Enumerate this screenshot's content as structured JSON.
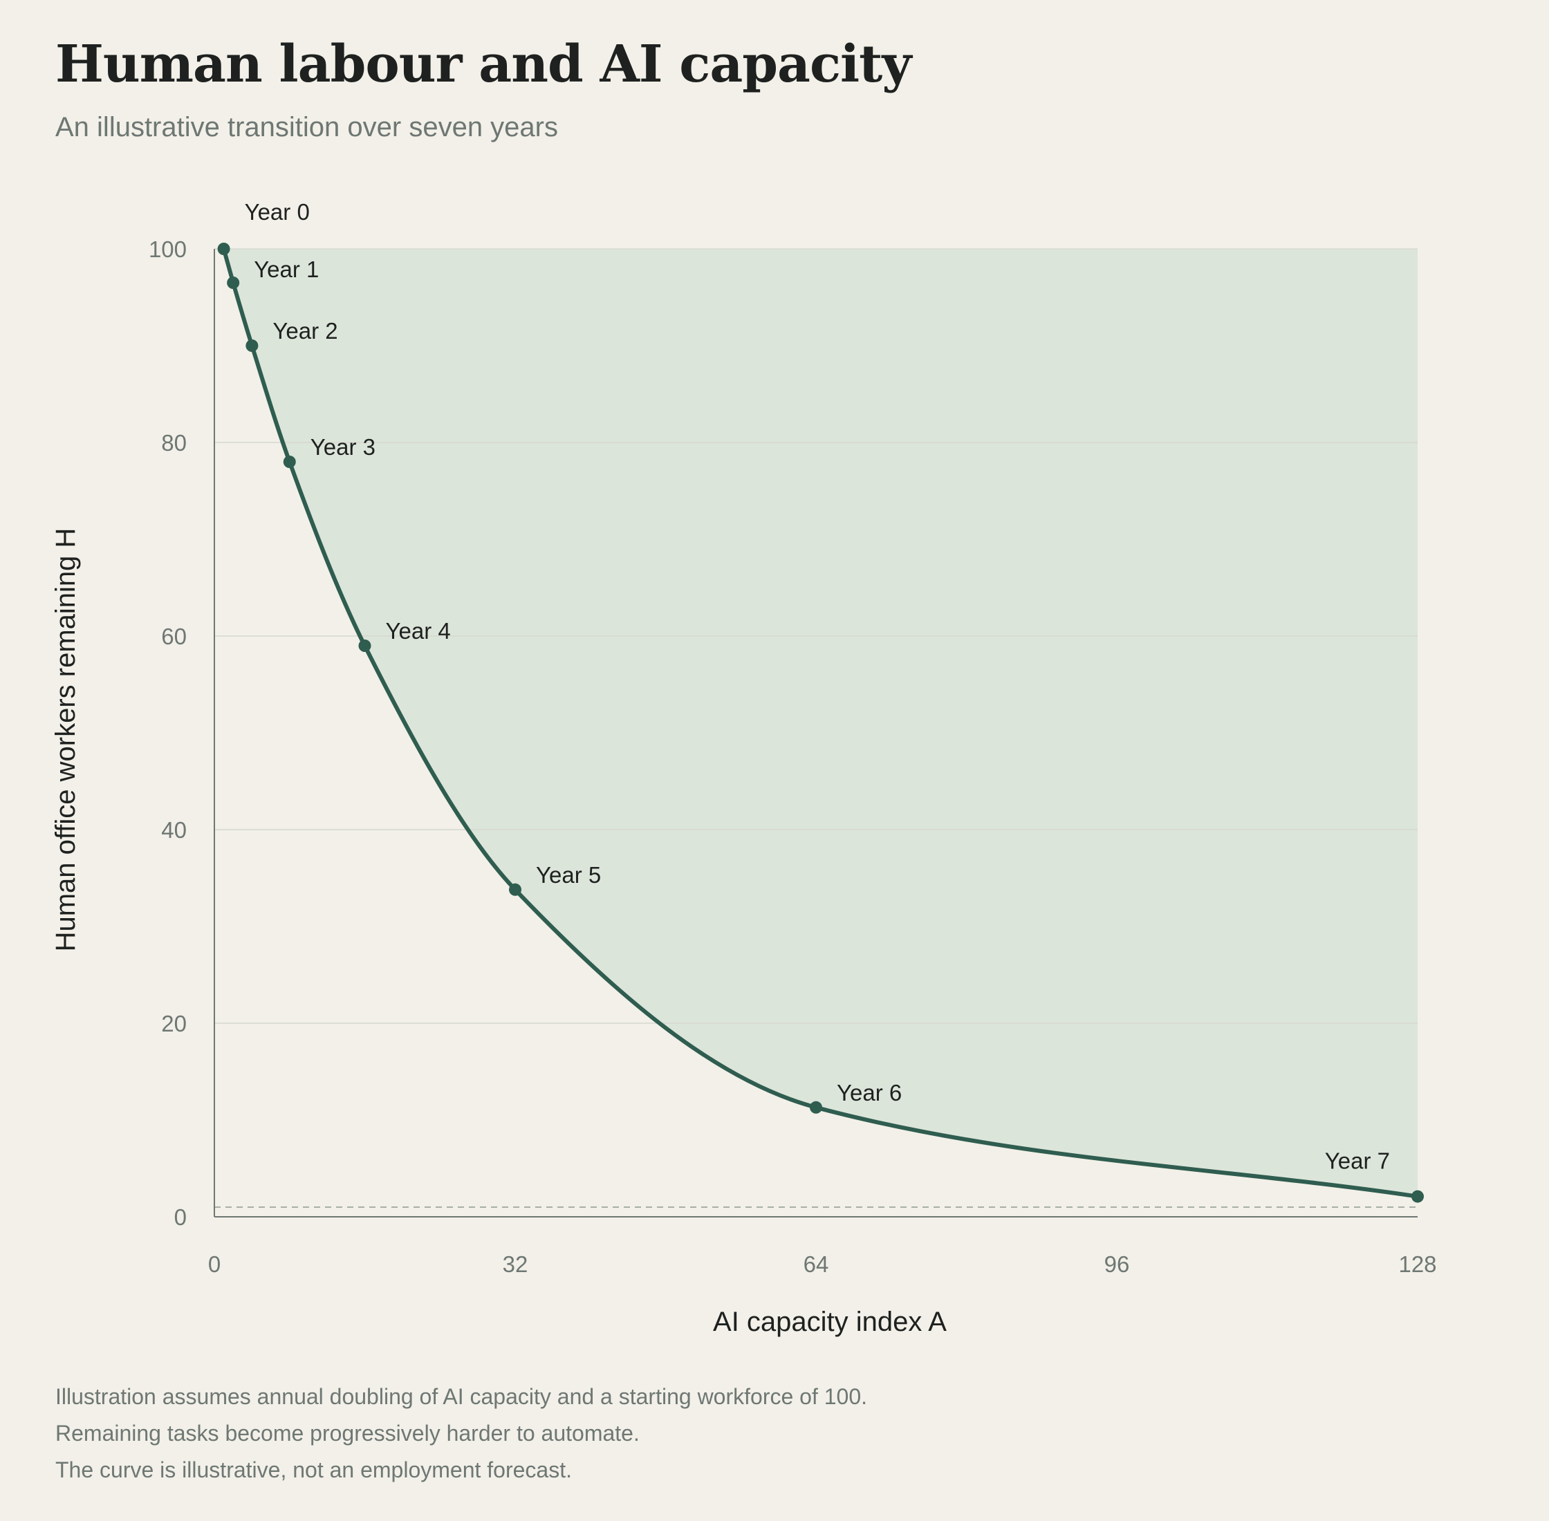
{
  "title": "Human labour and AI capacity",
  "subtitle": "An illustrative transition over seven years",
  "notes": [
    "Illustration assumes annual doubling of AI capacity and a starting workforce of 100.",
    "Remaining tasks become progressively harder to automate.",
    "The curve is illustrative, not an employment forecast."
  ],
  "colors": {
    "background": "#f2f0e8",
    "line": "#2f5d50",
    "fill": "#dce5da",
    "grid": "#d6d8d0",
    "axis": "#6e7773",
    "text": "#1e211f"
  },
  "chart_data": {
    "type": "line",
    "xlabel": "AI capacity index A",
    "ylabel": "Human office workers remaining H",
    "xlim": [
      0,
      128
    ],
    "ylim": [
      0,
      100
    ],
    "xticks": [
      0,
      32,
      64,
      96,
      128
    ],
    "yticks": [
      0,
      20,
      40,
      60,
      80,
      100
    ],
    "grid": true,
    "area_under": false,
    "area_above_filled": true,
    "reference_line": {
      "y": 1,
      "style": "dashed"
    },
    "series": [
      {
        "points": [
          {
            "label": "Year 0",
            "x": 1,
            "y": 100
          },
          {
            "label": "Year 1",
            "x": 2,
            "y": 96.5
          },
          {
            "label": "Year 2",
            "x": 4,
            "y": 90
          },
          {
            "label": "Year 3",
            "x": 8,
            "y": 78
          },
          {
            "label": "Year 4",
            "x": 16,
            "y": 59
          },
          {
            "label": "Year 5",
            "x": 32,
            "y": 33.8
          },
          {
            "label": "Year 6",
            "x": 64,
            "y": 11.3
          },
          {
            "label": "Year 7",
            "x": 128,
            "y": 2.1
          }
        ]
      }
    ]
  }
}
